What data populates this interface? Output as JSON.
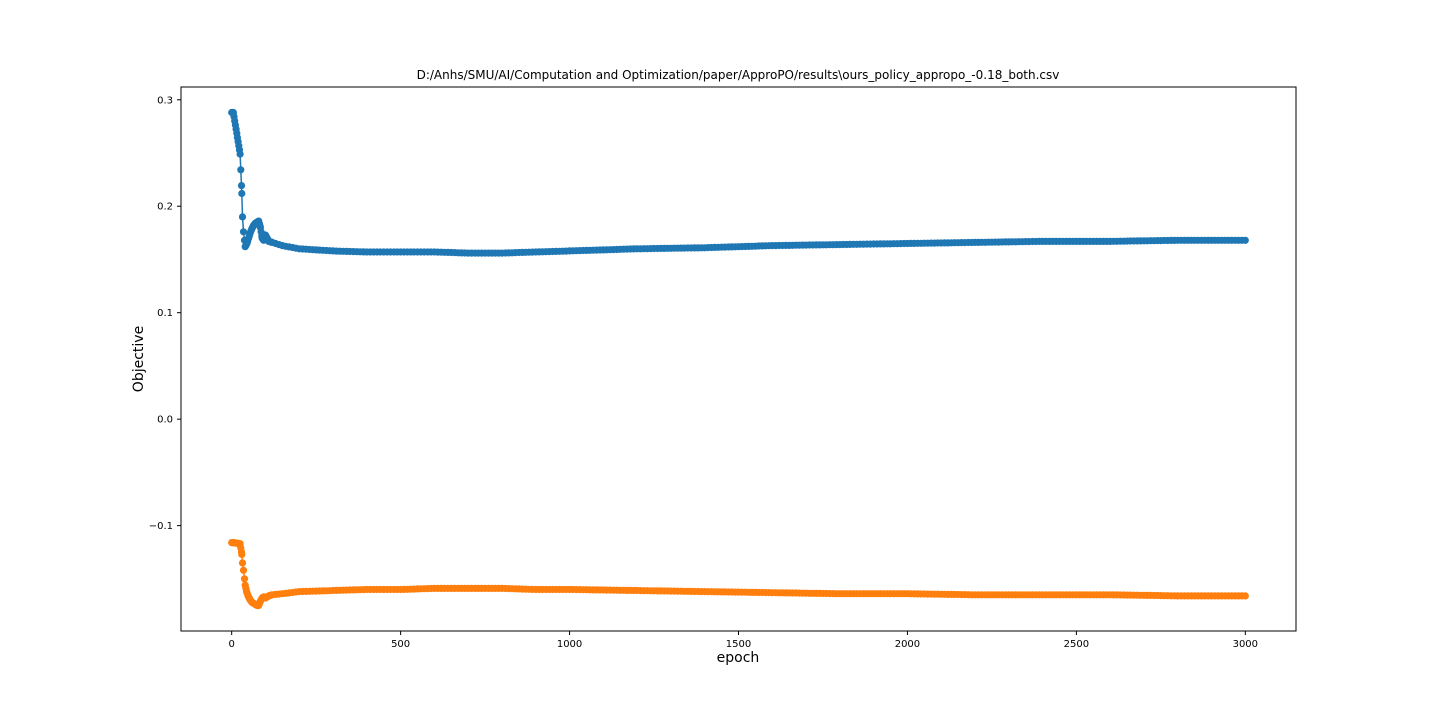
{
  "chart_data": {
    "type": "line",
    "title": "D:/Anhs/SMU/AI/Computation and Optimization/paper/ApproPO/results\\ours_policy_appropo_-0.18_both.csv",
    "xlabel": "epoch",
    "ylabel": "Objective",
    "xlim": [
      -150,
      3150
    ],
    "ylim": [
      -0.199,
      0.312
    ],
    "xticks": [
      0,
      500,
      1000,
      1500,
      2000,
      2500,
      3000
    ],
    "xtick_labels": [
      "0",
      "500",
      "1000",
      "1500",
      "2000",
      "2500",
      "3000"
    ],
    "yticks": [
      -0.1,
      0.0,
      0.1,
      0.2,
      0.3
    ],
    "ytick_labels": [
      "−0.1",
      "0.0",
      "0.1",
      "0.2",
      "0.3"
    ],
    "grid": false,
    "legend": "none",
    "marker": "circle",
    "series": [
      {
        "color": "#1f77b4",
        "x": [
          0,
          5,
          25,
          30,
          32,
          35,
          38,
          40,
          45,
          50,
          55,
          60,
          65,
          70,
          75,
          80,
          85,
          90,
          95,
          100,
          110,
          120,
          150,
          200,
          300,
          400,
          500,
          600,
          700,
          800,
          900,
          1000,
          1200,
          1400,
          1600,
          1800,
          2000,
          2200,
          2400,
          2600,
          2800,
          3000
        ],
        "y": [
          0.288,
          0.288,
          0.249,
          0.212,
          0.19,
          0.176,
          0.168,
          0.162,
          0.165,
          0.17,
          0.175,
          0.179,
          0.182,
          0.184,
          0.185,
          0.186,
          0.18,
          0.17,
          0.168,
          0.173,
          0.167,
          0.166,
          0.163,
          0.16,
          0.158,
          0.157,
          0.157,
          0.157,
          0.156,
          0.156,
          0.157,
          0.158,
          0.16,
          0.161,
          0.163,
          0.164,
          0.165,
          0.166,
          0.167,
          0.167,
          0.168,
          0.168
        ]
      },
      {
        "color": "#ff7f0e",
        "x": [
          0,
          5,
          25,
          30,
          32,
          35,
          38,
          40,
          45,
          50,
          55,
          60,
          65,
          70,
          75,
          80,
          85,
          90,
          95,
          100,
          110,
          120,
          150,
          200,
          300,
          400,
          500,
          600,
          700,
          800,
          900,
          1000,
          1200,
          1400,
          1600,
          1800,
          2000,
          2200,
          2400,
          2600,
          2800,
          3000
        ],
        "y": [
          -0.116,
          -0.116,
          -0.117,
          -0.127,
          -0.135,
          -0.142,
          -0.15,
          -0.156,
          -0.163,
          -0.167,
          -0.17,
          -0.172,
          -0.173,
          -0.174,
          -0.175,
          -0.175,
          -0.171,
          -0.168,
          -0.167,
          -0.168,
          -0.166,
          -0.165,
          -0.164,
          -0.162,
          -0.161,
          -0.16,
          -0.16,
          -0.159,
          -0.159,
          -0.159,
          -0.16,
          -0.16,
          -0.161,
          -0.162,
          -0.163,
          -0.164,
          -0.164,
          -0.165,
          -0.165,
          -0.165,
          -0.166,
          -0.166
        ]
      }
    ]
  }
}
